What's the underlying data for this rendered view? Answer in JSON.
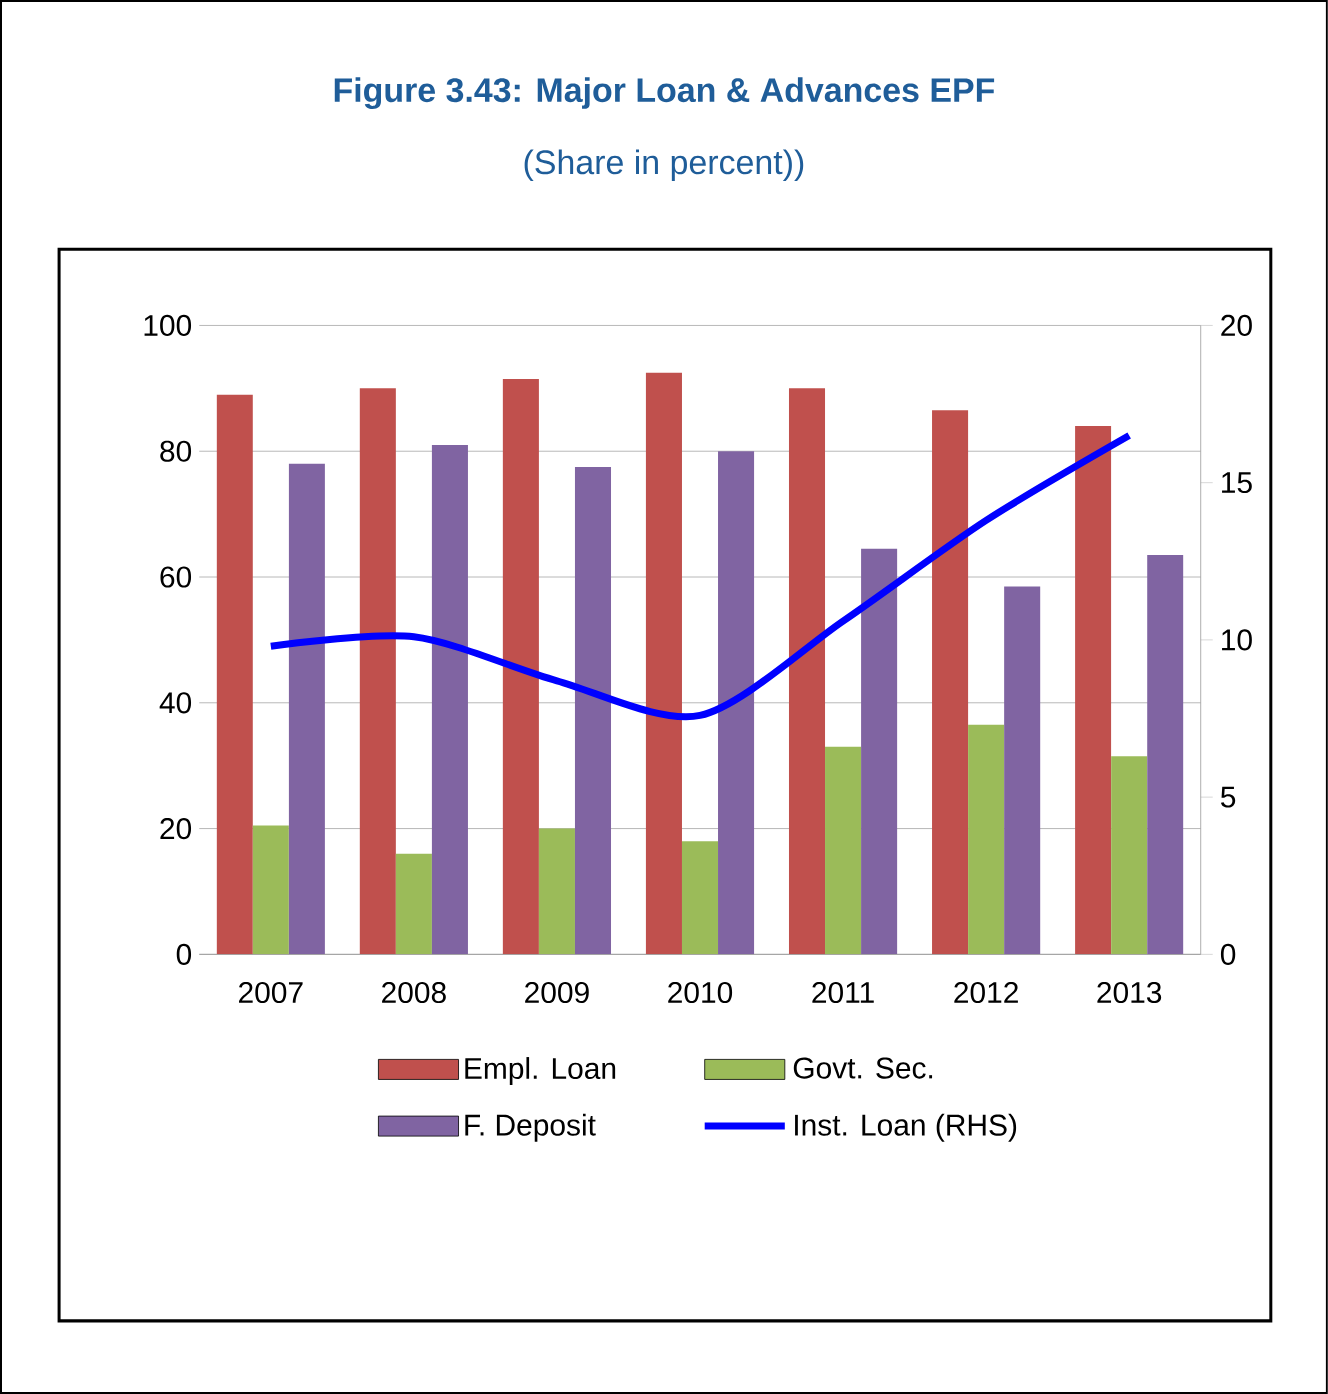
{
  "chart_data": {
    "type": "bar",
    "title": "Figure 3.43: Major Loan & Advances EPF",
    "subtitle": "(Share in percent))",
    "categories": [
      "2007",
      "2008",
      "2009",
      "2010",
      "2011",
      "2012",
      "2013"
    ],
    "series": [
      {
        "name": "Empl. Loan",
        "color": "#c0504d",
        "values": [
          89,
          90,
          91.5,
          92.5,
          90,
          86.5,
          84
        ]
      },
      {
        "name": "Govt. Sec.",
        "color": "#9bbb59",
        "values": [
          20.5,
          16,
          20,
          18,
          33,
          36.5,
          31.5
        ]
      },
      {
        "name": "F. Deposit",
        "color": "#8064a2",
        "values": [
          78,
          81,
          77.5,
          80,
          64.5,
          58.5,
          63.5
        ]
      },
      {
        "name": "Inst. Loan (RHS)",
        "type": "line",
        "axis": "y2",
        "color": "#0000ff",
        "values": [
          9.8,
          10.1,
          8.7,
          7.6,
          10.6,
          13.8,
          16.5
        ]
      }
    ],
    "ylim": [
      0,
      100
    ],
    "yticks": [
      0,
      20,
      40,
      60,
      80,
      100
    ],
    "y2lim": [
      0,
      20
    ],
    "y2ticks": [
      0,
      5,
      10,
      15,
      20
    ],
    "grid": "y",
    "legend": "bottom"
  }
}
